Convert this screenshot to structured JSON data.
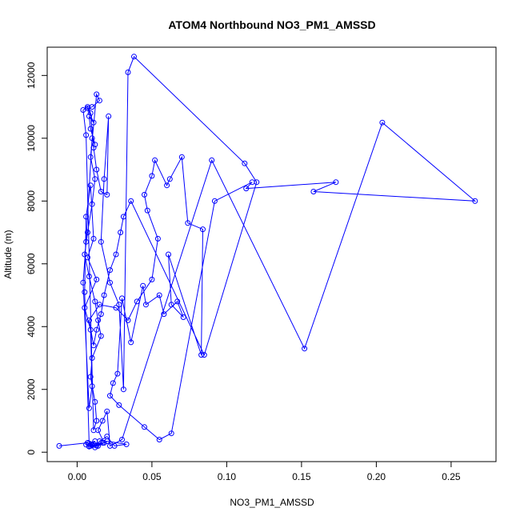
{
  "chart_data": {
    "type": "line",
    "title": "ATOM4 Northbound NO3_PM1_AMSSD",
    "xlabel": "NO3_PM1_AMSSD",
    "ylabel": "Altitude (m)",
    "xlim": [
      -0.02,
      0.28
    ],
    "ylim": [
      -300,
      12900
    ],
    "xticks": [
      0.0,
      0.05,
      0.1,
      0.15,
      0.2,
      0.25
    ],
    "xtick_labels": [
      "0.00",
      "0.05",
      "0.10",
      "0.15",
      "0.20",
      "0.25"
    ],
    "yticks": [
      0,
      2000,
      4000,
      6000,
      8000,
      10000,
      12000
    ],
    "ytick_labels": [
      "0",
      "2000",
      "4000",
      "6000",
      "8000",
      "10000",
      "12000"
    ],
    "grid": false,
    "marker": "open-circle",
    "color": "#0000ff",
    "series": [
      {
        "x": [
          -0.012,
          0.007,
          0.01,
          0.012,
          0.008,
          0.005,
          0.006,
          0.009,
          0.011,
          0.007,
          0.013,
          0.005,
          0.009,
          0.01,
          0.008,
          0.004,
          0.006,
          0.01,
          0.012,
          0.009,
          0.008,
          0.011,
          0.007,
          0.01,
          0.015,
          0.013,
          0.009,
          0.012,
          0.01,
          0.007,
          0.005,
          0.008,
          0.012,
          0.014,
          0.016,
          0.01,
          0.009,
          0.012,
          0.013,
          0.011,
          0.006,
          0.004,
          0.007,
          0.009,
          0.011,
          0.013,
          0.016,
          0.02,
          0.021,
          0.018,
          0.016,
          0.022,
          0.028,
          0.031,
          0.034,
          0.038,
          0.112,
          0.12,
          0.085,
          0.036,
          0.031,
          0.029,
          0.026,
          0.022,
          0.018,
          0.016,
          0.013,
          0.011,
          0.008,
          0.015,
          0.026,
          0.034,
          0.04,
          0.05,
          0.054,
          0.047,
          0.045,
          0.05,
          0.052,
          0.06,
          0.062,
          0.07,
          0.074,
          0.084,
          0.083,
          0.061,
          0.063,
          0.071,
          0.067,
          0.058,
          0.055,
          0.046,
          0.044,
          0.036,
          0.03,
          0.027,
          0.024,
          0.022,
          0.028,
          0.045,
          0.055,
          0.063,
          0.092,
          0.117,
          0.113,
          0.173,
          0.158,
          0.266,
          0.204,
          0.152,
          0.09,
          0.03,
          0.022,
          0.02,
          0.017,
          0.014,
          0.018,
          0.009,
          0.012,
          0.015,
          0.02,
          0.025,
          0.033,
          0.02,
          0.014,
          0.01,
          0.008,
          0.013,
          0.017,
          0.011,
          0.008,
          0.006
        ],
        "y": [
          200,
          300,
          250,
          350,
          280,
          5100,
          7500,
          8500,
          6800,
          6200,
          5500,
          4600,
          3900,
          2100,
          1400,
          5400,
          6700,
          10000,
          9800,
          10300,
          10700,
          10500,
          10950,
          11000,
          11200,
          11400,
          9400,
          8700,
          7900,
          7000,
          6300,
          5600,
          4800,
          4200,
          3700,
          3000,
          2400,
          1600,
          1000,
          700,
          10100,
          10900,
          11000,
          10800,
          9700,
          9000,
          8300,
          8200,
          10700,
          8700,
          6700,
          5400,
          4700,
          2000,
          12100,
          12600,
          9200,
          8600,
          3100,
          8000,
          7500,
          7000,
          6300,
          5800,
          5000,
          4400,
          3900,
          3400,
          4200,
          4700,
          4600,
          4200,
          4800,
          5500,
          6800,
          7700,
          8200,
          8800,
          9300,
          8500,
          8700,
          9400,
          7300,
          7100,
          3100,
          6300,
          4700,
          4300,
          4800,
          4400,
          5000,
          4700,
          5300,
          3500,
          4900,
          2500,
          2200,
          1800,
          1500,
          800,
          400,
          600,
          8000,
          8600,
          8400,
          8600,
          8300,
          8000,
          10500,
          3300,
          9300,
          400,
          200,
          1300,
          1000,
          700,
          300,
          200,
          150,
          350,
          500,
          200,
          250,
          350,
          200,
          220,
          180,
          210,
          300,
          260,
          190,
          240
        ]
      }
    ]
  }
}
